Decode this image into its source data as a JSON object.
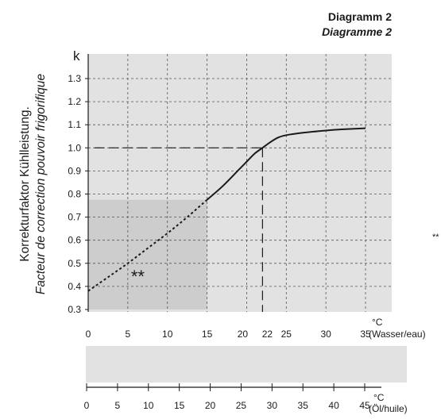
{
  "header": {
    "title_de": "Diagramm 2",
    "title_fr": "Diagramme 2"
  },
  "colors": {
    "plot_bg": "#e2e2e2",
    "shade": "#cdcdcd",
    "oil_band": "#e2e2e2",
    "curve": "#1a1a1a"
  },
  "chart_data": {
    "type": "line",
    "y_axis_symbol": "k",
    "ylabel_de": "Korrekturfaktor Kühlleistung.",
    "ylabel_fr": "Facteur de correction pouvoir frigorifique",
    "ylim": [
      0.3,
      1.35
    ],
    "yticks": [
      "0.3",
      "0.4",
      "0.5",
      "0.6",
      "0.7",
      "0.8",
      "0.9",
      "1.0",
      "1.1",
      "1.2",
      "1.3"
    ],
    "xlim": [
      0,
      38
    ],
    "xticks": [
      "0",
      "5",
      "10",
      "15",
      "20",
      "22",
      "25",
      "30",
      "35"
    ],
    "x_unit": "°C",
    "x_medium": "(Wasser/eau)",
    "grid": true,
    "series": [
      {
        "style": "dotted",
        "x": [
          0,
          2.5,
          5,
          7.5,
          10,
          12.5,
          15
        ],
        "y": [
          0.38,
          0.44,
          0.5,
          0.565,
          0.63,
          0.7,
          0.775
        ]
      },
      {
        "style": "solid",
        "x": [
          15,
          17,
          19,
          20,
          21,
          22,
          23,
          24,
          25,
          27,
          30,
          32,
          35
        ],
        "y": [
          0.775,
          0.835,
          0.905,
          0.94,
          0.975,
          1.0,
          1.025,
          1.045,
          1.055,
          1.065,
          1.075,
          1.08,
          1.085
        ]
      }
    ],
    "reference_point": {
      "x": 22,
      "y": 1.0,
      "oil_temp": 30
    },
    "shaded_region": {
      "x": [
        0,
        15
      ],
      "y": [
        0.3,
        0.775
      ],
      "label": "**"
    },
    "side_note": "**",
    "oil_axis": {
      "xlim": [
        0,
        48
      ],
      "xticks": [
        "0",
        "5",
        "10",
        "15",
        "20",
        "25",
        "30",
        "35",
        "40",
        "45"
      ],
      "x_unit": "°C",
      "x_medium": "(Öl/huile)"
    }
  }
}
